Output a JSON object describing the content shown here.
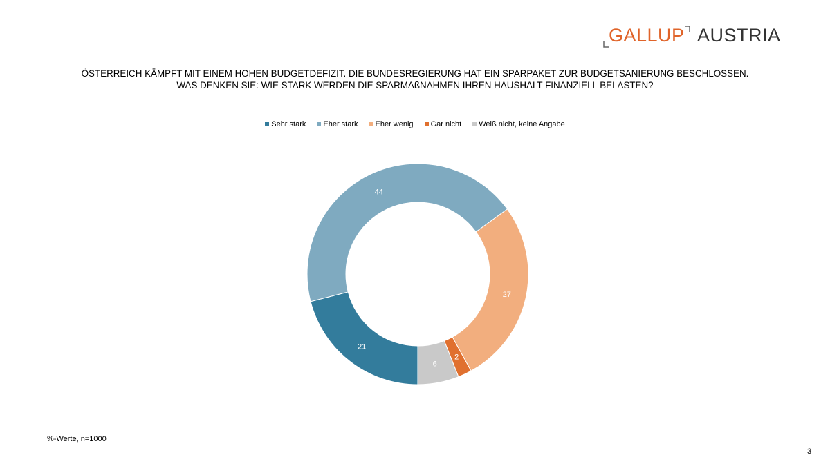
{
  "logo": {
    "brand": "GALLUP",
    "region": "AUSTRIA"
  },
  "title_lines": [
    "ÖSTERREICH KÄMPFT MIT EINEM HOHEN BUDGETDEFIZIT. DIE BUNDESREGIERUNG HAT EIN SPARPAKET ZUR BUDGETSANIERUNG BESCHLOSSEN.",
    "WAS DENKEN SIE: WIE STARK WERDEN DIE SPARMAßNAHMEN IHREN HAUSHALT FINANZIELL BELASTEN?"
  ],
  "chart_data": {
    "type": "pie",
    "subtype": "donut",
    "categories": [
      "Sehr stark",
      "Eher stark",
      "Eher wenig",
      "Gar nicht",
      "Weiß nicht, keine Angabe"
    ],
    "values": [
      21,
      44,
      27,
      2,
      6
    ],
    "colors": [
      "#337c9c",
      "#7faac0",
      "#f2ae7e",
      "#e0702f",
      "#c9c9c9"
    ],
    "data_labels": [
      "21",
      "44",
      "27",
      "2",
      "6"
    ],
    "legend_position": "top",
    "start": "bottom, clockwise"
  },
  "footnote": "%-Werte, n=1000",
  "page_number": "3"
}
